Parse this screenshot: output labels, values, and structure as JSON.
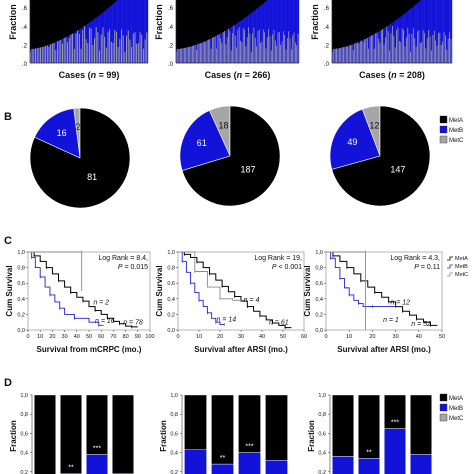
{
  "colors": {
    "MetA": "#000000",
    "MetB": "#1212d8",
    "MetC": "#a6a6a6"
  },
  "chart_data": {
    "panels": [
      "B",
      "C",
      "D"
    ],
    "A": {
      "type": "bar",
      "subtype": "stacked-per-case",
      "ylabel": "Fraction",
      "ylim": [
        0,
        1
      ],
      "yticks": [
        ".0",
        ".2",
        ".4",
        ".6"
      ],
      "charts": [
        {
          "xlabel_prefix": "Cases (",
          "n_symbol": "n",
          "n_text": " = 99)"
        },
        {
          "xlabel_prefix": "Cases (",
          "n_symbol": "n",
          "n_text": " = 266)"
        },
        {
          "xlabel_prefix": "Cases (",
          "n_symbol": "n",
          "n_text": " = 208)"
        }
      ]
    },
    "B": {
      "type": "pie",
      "legend": [
        "MetA",
        "MetB",
        "MetC"
      ],
      "charts": [
        {
          "slices": [
            {
              "label": "MetA",
              "value": 81
            },
            {
              "label": "MetB",
              "value": 16
            },
            {
              "label": "MetC",
              "value": 2
            }
          ],
          "labels": [
            "81",
            "16",
            "2"
          ]
        },
        {
          "slices": [
            {
              "label": "MetA",
              "value": 187
            },
            {
              "label": "MetB",
              "value": 61
            },
            {
              "label": "MetC",
              "value": 18
            }
          ],
          "labels": [
            "187",
            "61",
            "18"
          ]
        },
        {
          "slices": [
            {
              "label": "MetA",
              "value": 147
            },
            {
              "label": "MetB",
              "value": 49
            },
            {
              "label": "MetC",
              "value": 12
            }
          ],
          "labels": [
            "147",
            "49",
            "12"
          ]
        }
      ]
    },
    "C": {
      "type": "line",
      "subtype": "kaplan-meier",
      "ylabel": "Cum Survival",
      "ylim": [
        0,
        1
      ],
      "yticks": [
        "0,0",
        "0,2",
        "0,4",
        "0,6",
        "0,8",
        "1,0"
      ],
      "legend": [
        "MetA",
        "MetB",
        "MetC"
      ],
      "charts": [
        {
          "xlabel": "Survival from mCRPC (mo.)",
          "xlim": [
            0,
            100
          ],
          "xticks": [
            "0",
            "10",
            "20",
            "30",
            "40",
            "50",
            "60",
            "70",
            "80",
            "90",
            "100"
          ],
          "stat_line1": "Log Rank = 8.4,",
          "stat_p": "P",
          "stat_line2": " = 0.015",
          "n_labels": [
            {
              "text": "n = 2",
              "x": 60,
              "y": 0.33
            },
            {
              "text": "n = 16",
              "x": 63,
              "y": 0.09
            },
            {
              "text": "n = 78",
              "x": 86,
              "y": 0.07
            }
          ],
          "series": [
            {
              "name": "MetA",
              "x": [
                0,
                5,
                10,
                15,
                20,
                25,
                30,
                35,
                40,
                45,
                50,
                55,
                60,
                65,
                70,
                75,
                80,
                85,
                90
              ],
              "y": [
                1.0,
                0.95,
                0.88,
                0.8,
                0.72,
                0.63,
                0.55,
                0.48,
                0.42,
                0.37,
                0.3,
                0.25,
                0.2,
                0.15,
                0.11,
                0.08,
                0.05,
                0.04,
                0.04
              ]
            },
            {
              "name": "MetB",
              "x": [
                0,
                3,
                6,
                10,
                14,
                18,
                22,
                26,
                30,
                38,
                50,
                58,
                62
              ],
              "y": [
                1.0,
                0.93,
                0.8,
                0.68,
                0.55,
                0.45,
                0.36,
                0.28,
                0.2,
                0.15,
                0.1,
                0.06,
                0.06
              ]
            },
            {
              "name": "MetC",
              "x": [
                0,
                44,
                44
              ],
              "y": [
                1.0,
                1.0,
                0.5
              ]
            }
          ]
        },
        {
          "xlabel": "Survival after ARSI (mo.)",
          "xlim": [
            0,
            60
          ],
          "xticks": [
            "0",
            "10",
            "20",
            "30",
            "40",
            "50",
            "60"
          ],
          "stat_line1": "Log Rank = 19,",
          "stat_p": "P",
          "stat_line2": " < 0.001",
          "n_labels": [
            {
              "text": "n = 4",
              "x": 35,
              "y": 0.36
            },
            {
              "text": "n = 14",
              "x": 23,
              "y": 0.11
            },
            {
              "text": "n = 61",
              "x": 48,
              "y": 0.07
            }
          ],
          "series": [
            {
              "name": "MetA",
              "x": [
                0,
                3,
                6,
                9,
                12,
                15,
                18,
                21,
                24,
                27,
                30,
                33,
                36,
                39,
                42,
                45,
                48,
                51,
                54
              ],
              "y": [
                1.0,
                0.97,
                0.93,
                0.87,
                0.8,
                0.72,
                0.64,
                0.56,
                0.49,
                0.43,
                0.37,
                0.3,
                0.24,
                0.18,
                0.13,
                0.09,
                0.06,
                0.03,
                0.03
              ]
            },
            {
              "name": "MetB",
              "x": [
                0,
                2,
                4,
                6,
                8,
                10,
                12,
                14,
                16,
                18,
                20,
                22
              ],
              "y": [
                1.0,
                0.88,
                0.74,
                0.6,
                0.48,
                0.38,
                0.3,
                0.22,
                0.15,
                0.1,
                0.07,
                0.07
              ]
            },
            {
              "name": "MetC",
              "x": [
                0,
                8,
                14,
                20,
                26,
                32
              ],
              "y": [
                1.0,
                0.75,
                0.55,
                0.4,
                0.38,
                0.38
              ]
            }
          ]
        },
        {
          "xlabel": "Survival after ARSI (mo.)",
          "xlim": [
            0,
            50
          ],
          "xticks": [
            "0",
            "10",
            "20",
            "30",
            "40",
            "50"
          ],
          "stat_line1": "Log Rank = 4.3,",
          "stat_p": "P",
          "stat_line2": " = 0.11",
          "n_labels": [
            {
              "text": "n = 12",
              "x": 32,
              "y": 0.33
            },
            {
              "text": "n = 1",
              "x": 28,
              "y": 0.1
            },
            {
              "text": "n = 52",
              "x": 41,
              "y": 0.05
            }
          ],
          "series": [
            {
              "name": "MetA",
              "x": [
                0,
                3,
                6,
                9,
                12,
                15,
                18,
                21,
                24,
                27,
                30,
                33,
                36,
                39,
                42,
                45,
                48
              ],
              "y": [
                1.0,
                0.95,
                0.88,
                0.8,
                0.72,
                0.63,
                0.55,
                0.48,
                0.42,
                0.36,
                0.3,
                0.24,
                0.19,
                0.14,
                0.1,
                0.06,
                0.06
              ]
            },
            {
              "name": "MetB",
              "x": [
                0,
                2,
                4,
                6,
                8,
                10,
                12,
                14,
                16,
                20,
                26,
                30
              ],
              "y": [
                1.0,
                0.92,
                0.8,
                0.66,
                0.54,
                0.45,
                0.38,
                0.34,
                0.3,
                0.3,
                0.3,
                0.3
              ]
            },
            {
              "name": "MetC",
              "x": [
                0,
                17,
                17
              ],
              "y": [
                1.0,
                1.0,
                0.0
              ]
            }
          ]
        }
      ]
    },
    "D": {
      "type": "bar",
      "subtype": "stacked-100",
      "ylabel": "Fraction",
      "ylim": [
        0,
        1
      ],
      "yticks": [
        "0,2",
        "0,4",
        "0,6",
        "0,8",
        "1,0"
      ],
      "legend": [
        "MetA",
        "MetB",
        "MetC"
      ],
      "charts": [
        {
          "bars": [
            {
              "MetA": 0.9,
              "MetB": 0.1,
              "MetC": 0.0,
              "mark": ""
            },
            {
              "MetA": 0.82,
              "MetB": 0.18,
              "MetC": 0.0,
              "mark": "**"
            },
            {
              "MetA": 0.62,
              "MetB": 0.38,
              "MetC": 0.0,
              "mark": "***"
            },
            {
              "MetA": 0.82,
              "MetB": 0.18,
              "MetC": 0.0,
              "mark": ""
            }
          ]
        },
        {
          "bars": [
            {
              "MetA": 0.57,
              "MetB": 0.33,
              "MetC": 0.1,
              "mark": ""
            },
            {
              "MetA": 0.72,
              "MetB": 0.22,
              "MetC": 0.06,
              "mark": "**"
            },
            {
              "MetA": 0.6,
              "MetB": 0.32,
              "MetC": 0.08,
              "mark": "***"
            },
            {
              "MetA": 0.68,
              "MetB": 0.2,
              "MetC": 0.12,
              "mark": ""
            }
          ]
        },
        {
          "bars": [
            {
              "MetA": 0.64,
              "MetB": 0.22,
              "MetC": 0.14,
              "mark": ""
            },
            {
              "MetA": 0.66,
              "MetB": 0.24,
              "MetC": 0.1,
              "mark": "**"
            },
            {
              "MetA": 0.35,
              "MetB": 0.5,
              "MetC": 0.15,
              "mark": "***"
            },
            {
              "MetA": 0.62,
              "MetB": 0.26,
              "MetC": 0.12,
              "mark": ""
            }
          ]
        }
      ]
    }
  }
}
